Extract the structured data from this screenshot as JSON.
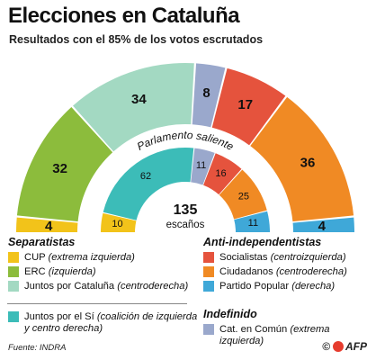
{
  "header": {
    "title": "Elecciones en Cataluña",
    "subtitle": "Resultados con el 85% de los votos escrutados"
  },
  "chart_data": [
    {
      "type": "parliament-semicircle",
      "title": "",
      "series": [
        {
          "party": "CUP",
          "seats": 4,
          "color": "#f2c31a",
          "label": "4"
        },
        {
          "party": "ERC",
          "seats": 32,
          "color": "#8cbc3c",
          "label": "32"
        },
        {
          "party": "Juntos por Cataluña",
          "seats": 34,
          "color": "#a3d9c2",
          "label": "34"
        },
        {
          "party": "Cat. en Común",
          "seats": 8,
          "color": "#9aa8cc",
          "label": "8"
        },
        {
          "party": "Socialistas",
          "seats": 17,
          "color": "#e5533d",
          "label": "17"
        },
        {
          "party": "Ciudadanos",
          "seats": 36,
          "color": "#f08a24",
          "label": "36"
        },
        {
          "party": "Partido Popular",
          "seats": 4,
          "color": "#3fa8d8",
          "label": "4"
        }
      ]
    },
    {
      "type": "parliament-semicircle",
      "title": "Parlamento saliente",
      "total_label": "135",
      "total_caption": "escaños",
      "series": [
        {
          "party": "CUP",
          "seats": 10,
          "color": "#f2c31a",
          "label": "10"
        },
        {
          "party": "Juntos por el Sí",
          "seats": 62,
          "color": "#3cbcb8",
          "label": "62"
        },
        {
          "party": "Cat. en Común",
          "seats": 11,
          "color": "#9aa8cc",
          "label": "11"
        },
        {
          "party": "Socialistas",
          "seats": 16,
          "color": "#e5533d",
          "label": "16"
        },
        {
          "party": "Ciudadanos",
          "seats": 25,
          "color": "#f08a24",
          "label": "25"
        },
        {
          "party": "Partido Popular",
          "seats": 11,
          "color": "#3fa8d8",
          "label": "11"
        }
      ]
    }
  ],
  "legend": {
    "separatistas": {
      "heading": "Separatistas",
      "items": [
        {
          "name": "CUP",
          "note": "(extrema izquierda)",
          "color": "#f2c31a"
        },
        {
          "name": "ERC",
          "note": "(izquierda)",
          "color": "#8cbc3c"
        },
        {
          "name": "Juntos por Cataluña",
          "note": "(centroderecha)",
          "color": "#a3d9c2"
        }
      ]
    },
    "juntos_si": {
      "name": "Juntos por el Sí",
      "note": "(coalición de izquierda y centro derecha)",
      "color": "#3cbcb8"
    },
    "anti": {
      "heading": "Anti-independentistas",
      "items": [
        {
          "name": "Socialistas",
          "note": "(centroizquierda)",
          "color": "#e5533d"
        },
        {
          "name": "Ciudadanos",
          "note": "(centroderecha)",
          "color": "#f08a24"
        },
        {
          "name": "Partido Popular",
          "note": "(derecha)",
          "color": "#3fa8d8"
        }
      ]
    },
    "indefinido": {
      "heading": "Indefinido",
      "items": [
        {
          "name": "Cat. en Común",
          "note": "(extrema izquierda)",
          "color": "#9aa8cc"
        }
      ]
    }
  },
  "footer": {
    "source": "Fuente: INDRA",
    "credit": "AFP",
    "copyright": "©"
  }
}
